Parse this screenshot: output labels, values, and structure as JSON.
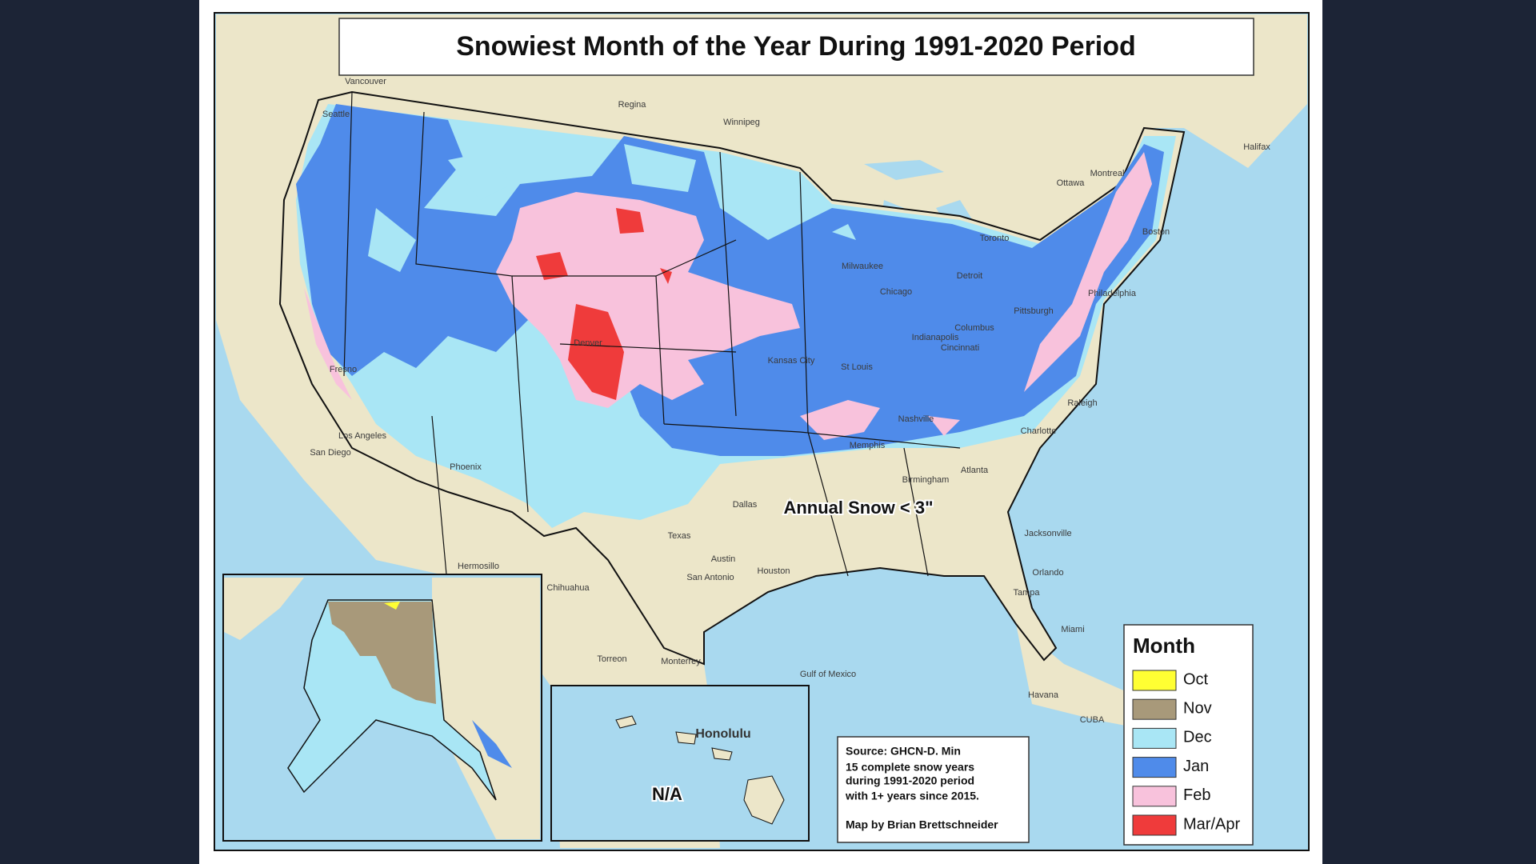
{
  "title": "Snowiest Month of the Year During 1991-2020 Period",
  "annotation": "Annual Snow < 3\"",
  "hawaii_inset": {
    "place": "Honolulu",
    "label": "N/A"
  },
  "legend": {
    "title": "Month",
    "items": [
      {
        "label": "Oct",
        "color": "#ffff33"
      },
      {
        "label": "Nov",
        "color": "#a8997a"
      },
      {
        "label": "Dec",
        "color": "#a9e6f5"
      },
      {
        "label": "Jan",
        "color": "#4f8bea"
      },
      {
        "label": "Feb",
        "color": "#f8c2dc"
      },
      {
        "label": "Mar/Apr",
        "color": "#ef3b3b"
      }
    ]
  },
  "source": {
    "lines": [
      "Source: GHCN-D. Min",
      "15 complete snow years",
      "during 1991-2020 period",
      "with 1+ years since 2015."
    ],
    "credit": "Map by Brian Brettschneider"
  },
  "map": {
    "labels": [
      "Vancouver",
      "Regina",
      "Winnipeg",
      "Ottawa",
      "Montreal",
      "Halifax",
      "Toronto",
      "Seattle",
      "Chicago",
      "Detroit",
      "Milwaukee",
      "Denver",
      "Kansas City",
      "St Louis",
      "Indianapolis",
      "Columbus",
      "Cincinnati",
      "Pittsburgh",
      "Philadelphia",
      "Boston",
      "Nashville",
      "Memphis",
      "Charlotte",
      "Raleigh",
      "Atlanta",
      "Birmingham",
      "Jacksonville",
      "Orlando",
      "Tampa",
      "Miami",
      "Los Angeles",
      "San Diego",
      "Phoenix",
      "Fresno",
      "Dallas",
      "Austin",
      "San Antonio",
      "Houston",
      "Texas",
      "Hermosillo",
      "Chihuahua",
      "Torreon",
      "Monterrey",
      "Gulf of Mexico",
      "Havana",
      "CUBA"
    ]
  }
}
